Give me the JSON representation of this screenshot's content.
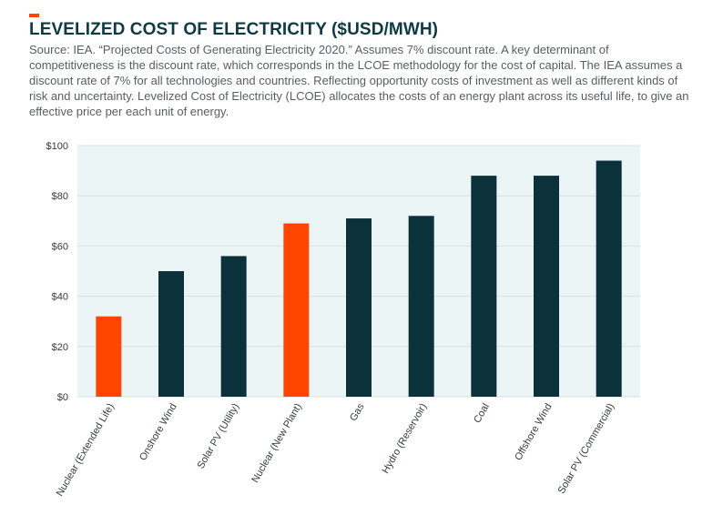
{
  "header": {
    "title": "LEVELIZED COST OF ELECTRICITY ($USD/MWH)",
    "subtitle": "Source: IEA. “Projected Costs of Generating Electricity 2020.” Assumes 7% discount rate. A key determinant of competitiveness is the discount rate, which corresponds in the LCOE methodology for the cost of capital. The IEA assumes a discount rate of 7% for all technologies and countries. Reflecting opportunity costs of investment as well as different kinds of risk and uncertainty. Levelized Cost of Electricity (LCOE) allocates the costs of an energy plant across its useful life, to give an effective price per each unit of energy."
  },
  "colors": {
    "accent": "#ff4500",
    "bar_default": "#0b313b",
    "bar_highlight": "#ff4500",
    "plot_background": "#ecf5f5",
    "title": "#0d3a44"
  },
  "chart_data": {
    "type": "bar",
    "title": "LEVELIZED COST OF ELECTRICITY ($USD/MWH)",
    "xlabel": "",
    "ylabel": "",
    "categories": [
      "Nuclear (Extended Life)",
      "Onshore Wind",
      "Solar PV (Utility)",
      "Nuclear (New Plant)",
      "Gas",
      "Hydro (Reservoir)",
      "Coal",
      "Offshore Wind",
      "Solar PV (Commercial)"
    ],
    "values": [
      32,
      50,
      56,
      69,
      71,
      72,
      88,
      88,
      94
    ],
    "highlighted": [
      "Nuclear (Extended Life)",
      "Nuclear (New Plant)"
    ],
    "ylim": [
      0,
      100
    ],
    "yticks": [
      0,
      20,
      40,
      60,
      80,
      100
    ],
    "ytick_labels": [
      "$0",
      "$20",
      "$40",
      "$60",
      "$80",
      "$100"
    ],
    "grid": true,
    "legend": "none"
  }
}
